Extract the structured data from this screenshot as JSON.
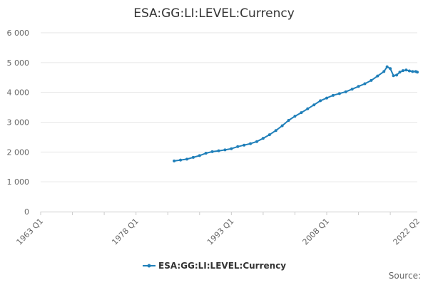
{
  "chart_data": {
    "type": "line",
    "title": "ESA:GG:LI:LEVEL:Currency",
    "xlabel": "",
    "ylabel": "",
    "ylim": [
      0,
      6000
    ],
    "y_ticks": [
      "0",
      "1 000",
      "2 000",
      "3 000",
      "4 000",
      "5 000",
      "6 000"
    ],
    "x_tick_labels": [
      "1963 Q1",
      "1978 Q1",
      "1993 Q1",
      "2008 Q1",
      "2022 Q2"
    ],
    "grid": true,
    "legend_position": "bottom",
    "series": [
      {
        "name": "ESA:GG:LI:LEVEL:Currency",
        "color": "#1f7fb9",
        "points": [
          [
            "1984 Q1",
            1700
          ],
          [
            "1985 Q1",
            1730
          ],
          [
            "1986 Q1",
            1760
          ],
          [
            "1987 Q1",
            1820
          ],
          [
            "1988 Q1",
            1880
          ],
          [
            "1989 Q1",
            1960
          ],
          [
            "1990 Q1",
            2010
          ],
          [
            "1991 Q1",
            2040
          ],
          [
            "1992 Q1",
            2070
          ],
          [
            "1993 Q1",
            2110
          ],
          [
            "1994 Q1",
            2180
          ],
          [
            "1995 Q1",
            2230
          ],
          [
            "1996 Q1",
            2280
          ],
          [
            "1997 Q1",
            2350
          ],
          [
            "1998 Q1",
            2460
          ],
          [
            "1999 Q1",
            2580
          ],
          [
            "2000 Q1",
            2720
          ],
          [
            "2001 Q1",
            2880
          ],
          [
            "2002 Q1",
            3060
          ],
          [
            "2003 Q1",
            3200
          ],
          [
            "2004 Q1",
            3320
          ],
          [
            "2005 Q1",
            3450
          ],
          [
            "2006 Q1",
            3580
          ],
          [
            "2007 Q1",
            3720
          ],
          [
            "2008 Q1",
            3810
          ],
          [
            "2009 Q1",
            3900
          ],
          [
            "2010 Q1",
            3960
          ],
          [
            "2011 Q1",
            4020
          ],
          [
            "2012 Q1",
            4110
          ],
          [
            "2013 Q1",
            4200
          ],
          [
            "2014 Q1",
            4290
          ],
          [
            "2015 Q1",
            4400
          ],
          [
            "2016 Q1",
            4550
          ],
          [
            "2017 Q1",
            4700
          ],
          [
            "2017 Q3",
            4860
          ],
          [
            "2018 Q1",
            4800
          ],
          [
            "2018 Q3",
            4560
          ],
          [
            "2019 Q1",
            4580
          ],
          [
            "2019 Q3",
            4680
          ],
          [
            "2020 Q1",
            4730
          ],
          [
            "2020 Q3",
            4750
          ],
          [
            "2021 Q1",
            4720
          ],
          [
            "2021 Q3",
            4700
          ],
          [
            "2022 Q1",
            4700
          ],
          [
            "2022 Q2",
            4680
          ]
        ]
      }
    ]
  },
  "footer": {
    "source_label": "Source:"
  }
}
